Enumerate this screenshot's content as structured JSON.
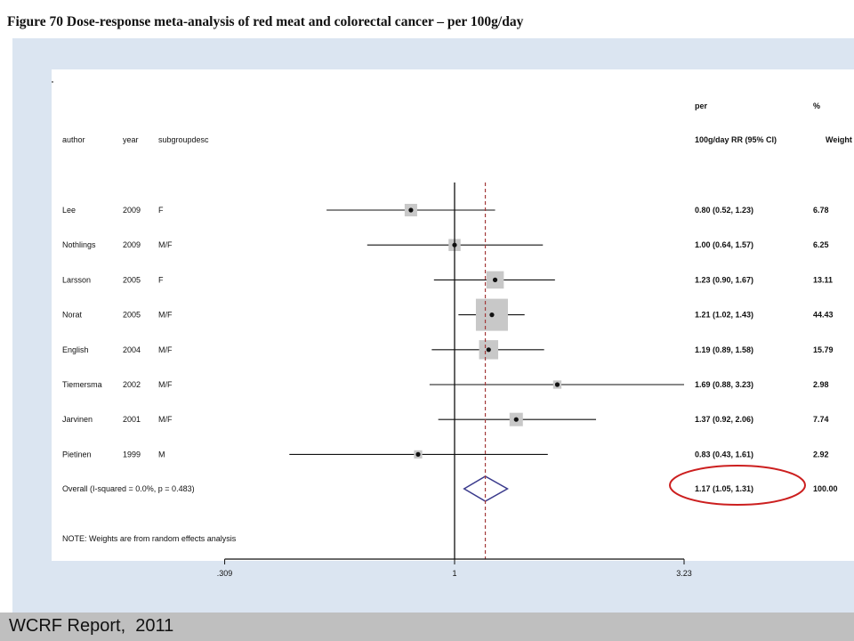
{
  "page": {
    "title": "Figure 70 Dose-response meta-analysis of red meat and colorectal cancer – per 100g/day",
    "footer": "WCRF Report,  2011"
  },
  "colors": {
    "panel": "#dbe5f1",
    "box": "#c8c8c8",
    "ref_line": "#a33a3a",
    "diamond": "#3a3a8c",
    "highlight": "#cc1f1f",
    "footer_bg": "#bfbfbf"
  },
  "chart_data": {
    "type": "forest",
    "header": {
      "col_author": "author",
      "col_year": "year",
      "col_sub": "subgroupdesc",
      "col_est_line1": "per",
      "col_est_line2": "100g/day RR (95% CI)",
      "col_weight_line1": "%",
      "col_weight_line2": "Weight"
    },
    "studies": [
      {
        "author": "Lee",
        "year": "2009",
        "sub": "F",
        "rr": 0.8,
        "lo": 0.52,
        "hi": 1.23,
        "ci_text": "0.80 (0.52, 1.23)",
        "weight": 6.78,
        "weight_text": "6.78"
      },
      {
        "author": "Nothlings",
        "year": "2009",
        "sub": "M/F",
        "rr": 1.0,
        "lo": 0.64,
        "hi": 1.57,
        "ci_text": "1.00 (0.64, 1.57)",
        "weight": 6.25,
        "weight_text": "6.25"
      },
      {
        "author": "Larsson",
        "year": "2005",
        "sub": "F",
        "rr": 1.23,
        "lo": 0.9,
        "hi": 1.67,
        "ci_text": "1.23 (0.90, 1.67)",
        "weight": 13.11,
        "weight_text": "13.11"
      },
      {
        "author": "Norat",
        "year": "2005",
        "sub": "M/F",
        "rr": 1.21,
        "lo": 1.02,
        "hi": 1.43,
        "ci_text": "1.21 (1.02, 1.43)",
        "weight": 44.43,
        "weight_text": "44.43"
      },
      {
        "author": "English",
        "year": "2004",
        "sub": "M/F",
        "rr": 1.19,
        "lo": 0.89,
        "hi": 1.58,
        "ci_text": "1.19 (0.89, 1.58)",
        "weight": 15.79,
        "weight_text": "15.79"
      },
      {
        "author": "Tiemersma",
        "year": "2002",
        "sub": "M/F",
        "rr": 1.69,
        "lo": 0.88,
        "hi": 3.23,
        "ci_text": "1.69 (0.88, 3.23)",
        "weight": 2.98,
        "weight_text": "2.98"
      },
      {
        "author": "Jarvinen",
        "year": "2001",
        "sub": "M/F",
        "rr": 1.37,
        "lo": 0.92,
        "hi": 2.06,
        "ci_text": "1.37 (0.92, 2.06)",
        "weight": 7.74,
        "weight_text": "7.74"
      },
      {
        "author": "Pietinen",
        "year": "1999",
        "sub": "M",
        "rr": 0.83,
        "lo": 0.43,
        "hi": 1.61,
        "ci_text": "0.83 (0.43, 1.61)",
        "weight": 2.92,
        "weight_text": "2.92"
      }
    ],
    "overall": {
      "label": "Overall  (I-squared = 0.0%, p = 0.483)",
      "rr": 1.17,
      "lo": 1.05,
      "hi": 1.31,
      "ci_text": "1.17 (1.05, 1.31)",
      "weight_text": "100.00"
    },
    "note": "NOTE: Weights are from random effects analysis",
    "x_scale": "log",
    "x_ticks": [
      {
        "value": 0.309,
        "label": ".309"
      },
      {
        "value": 1,
        "label": "1"
      },
      {
        "value": 3.23,
        "label": "3.23"
      }
    ],
    "xlim": [
      0.309,
      3.23
    ],
    "reference_value": 1,
    "overall_line_value": 1.17
  }
}
